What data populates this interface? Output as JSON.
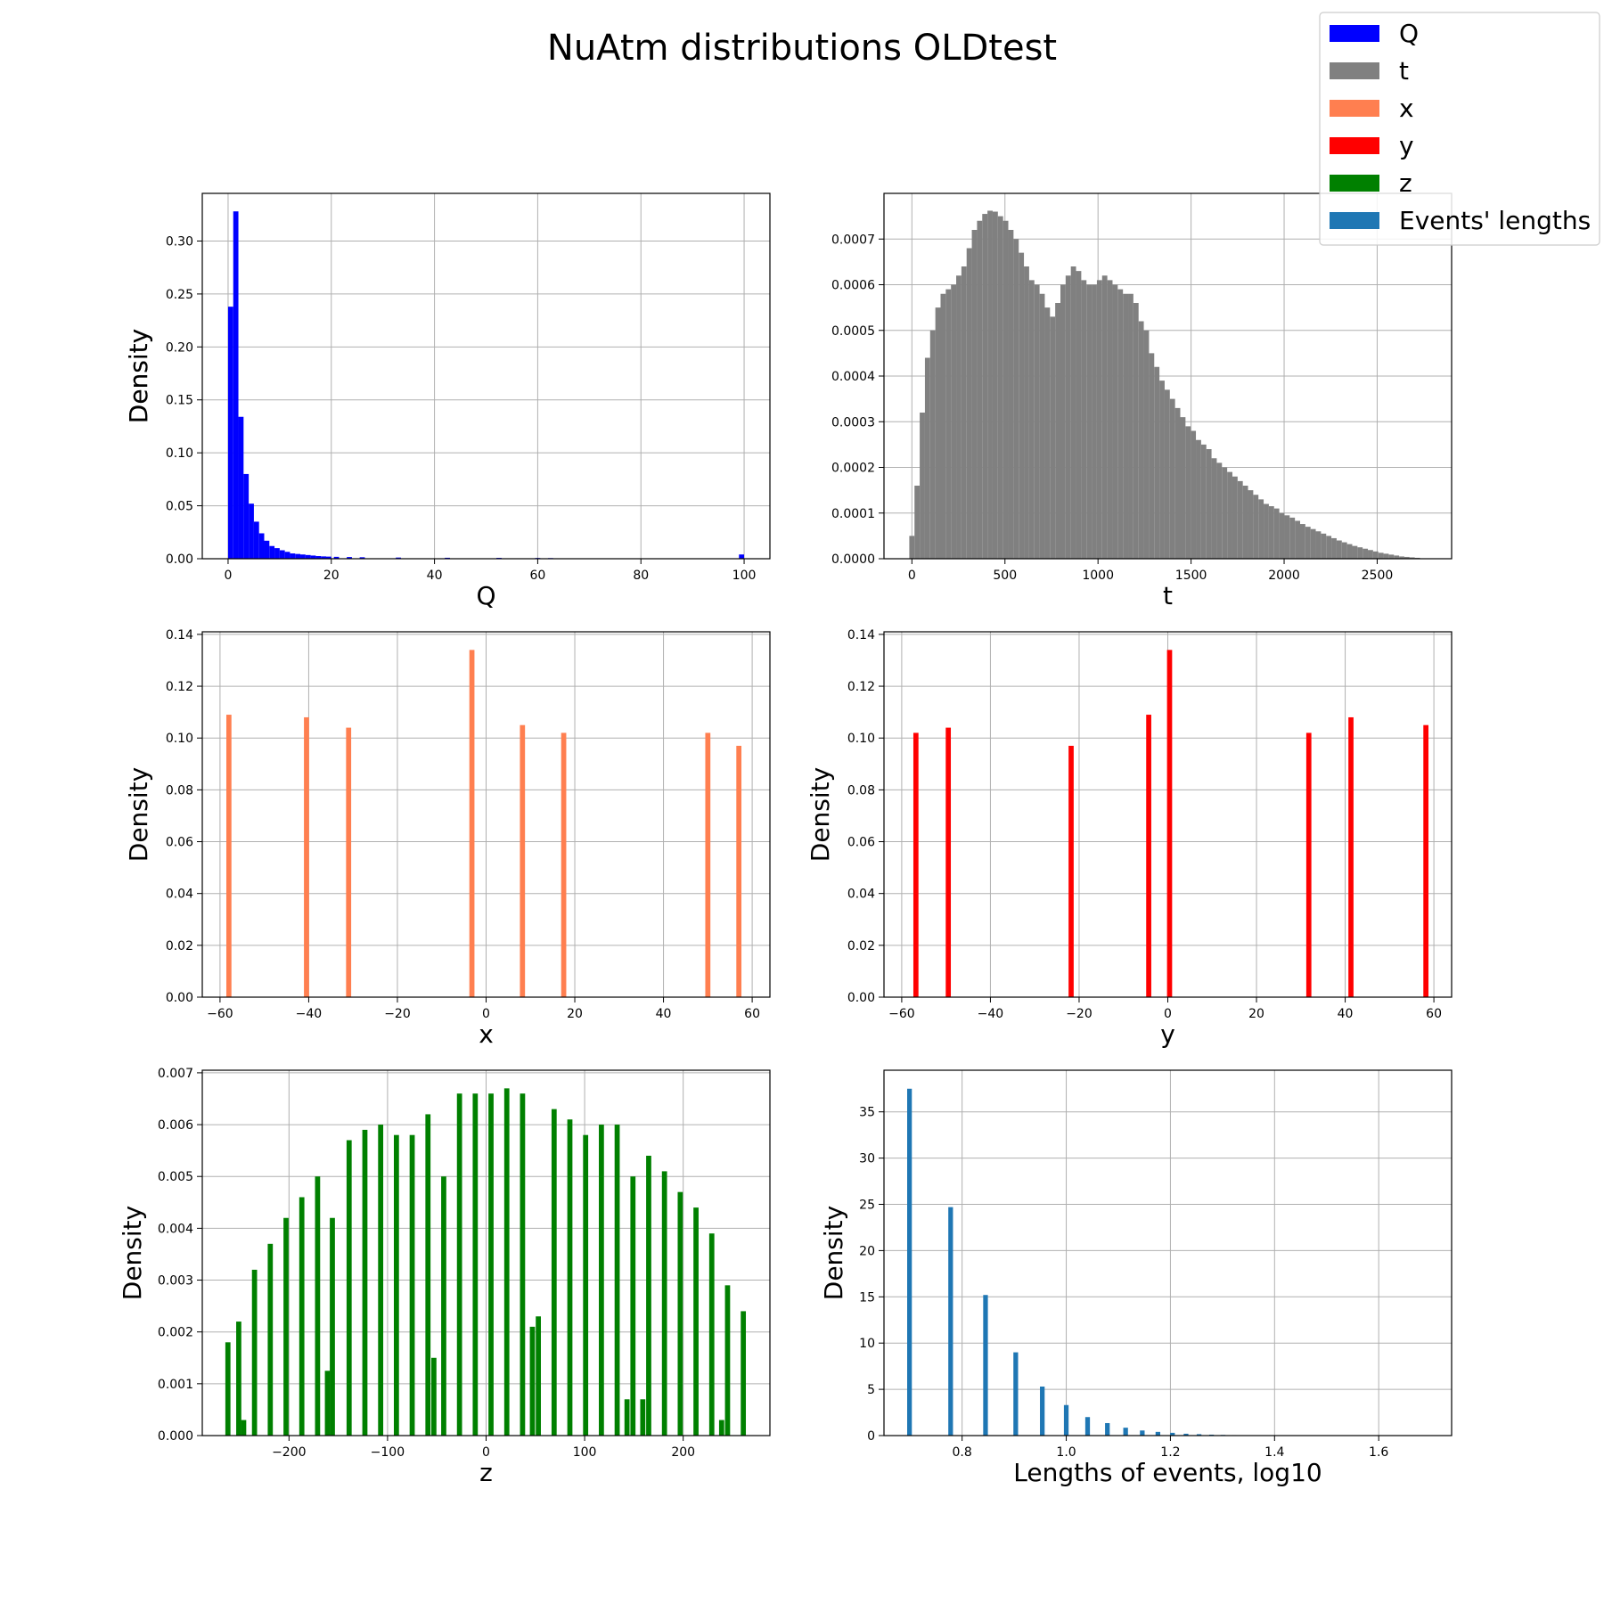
{
  "figure": {
    "title": "NuAtm distributions OLDtest",
    "legend": {
      "placement": "top-right",
      "entries": [
        {
          "label": "Q",
          "color": "#0000ff"
        },
        {
          "label": "t",
          "color": "#808080"
        },
        {
          "label": "x",
          "color": "#ff7f50"
        },
        {
          "label": "y",
          "color": "#ff0000"
        },
        {
          "label": "z",
          "color": "#008000"
        },
        {
          "label": "Events' lengths",
          "color": "#1f77b4"
        }
      ]
    }
  },
  "chart_data": [
    {
      "type": "bar",
      "series_name": "Q",
      "color": "#0000ff",
      "xlabel": "Q",
      "ylabel": "Density",
      "grid": true,
      "xlim": [
        -5,
        105
      ],
      "ylim": [
        0,
        0.345
      ],
      "xticks": [
        0,
        20,
        40,
        60,
        80,
        100
      ],
      "xtick_labels": [
        "0",
        "20",
        "40",
        "60",
        "80",
        "100"
      ],
      "yticks": [
        0,
        0.05,
        0.1,
        0.15,
        0.2,
        0.25,
        0.3
      ],
      "ytick_labels": [
        "0.00",
        "0.05",
        "0.10",
        "0.15",
        "0.20",
        "0.25",
        "0.30"
      ],
      "bin_width": 1,
      "x": [
        0.5,
        1.5,
        2.5,
        3.5,
        4.5,
        5.5,
        6.5,
        7.5,
        8.5,
        9.5,
        10.5,
        11.5,
        12.5,
        13.5,
        14.5,
        15.5,
        16.5,
        17.5,
        18.5,
        19.5,
        21.0,
        23.5,
        26.0,
        33.0,
        42.5,
        52.5,
        60.0,
        62.5,
        99.5
      ],
      "values": [
        0.238,
        0.328,
        0.134,
        0.08,
        0.052,
        0.035,
        0.024,
        0.017,
        0.012,
        0.01,
        0.008,
        0.0065,
        0.005,
        0.0045,
        0.004,
        0.0035,
        0.003,
        0.0025,
        0.0022,
        0.002,
        0.0018,
        0.0016,
        0.0014,
        0.0011,
        0.0009,
        0.0008,
        0.0007,
        0.0006,
        0.004
      ]
    },
    {
      "type": "bar",
      "series_name": "t",
      "color": "#808080",
      "xlabel": "t",
      "ylabel": "Density",
      "grid": true,
      "xlim": [
        -150,
        2900
      ],
      "ylim": [
        0,
        0.0008
      ],
      "xticks": [
        0,
        500,
        1000,
        1500,
        2000,
        2500
      ],
      "xtick_labels": [
        "0",
        "500",
        "1000",
        "1500",
        "2000",
        "2500"
      ],
      "yticks": [
        0,
        0.0001,
        0.0002,
        0.0003,
        0.0004,
        0.0005,
        0.0006,
        0.0007
      ],
      "ytick_labels": [
        "0.0000",
        "0.0001",
        "0.0002",
        "0.0003",
        "0.0004",
        "0.0005",
        "0.0006",
        "0.0007"
      ],
      "bin_width": 28,
      "x": [
        0,
        28,
        56,
        84,
        112,
        140,
        168,
        196,
        224,
        252,
        280,
        308,
        336,
        364,
        392,
        420,
        448,
        476,
        504,
        532,
        560,
        588,
        616,
        644,
        672,
        700,
        728,
        756,
        784,
        812,
        840,
        868,
        896,
        924,
        952,
        980,
        1008,
        1036,
        1064,
        1092,
        1120,
        1148,
        1176,
        1204,
        1232,
        1260,
        1288,
        1316,
        1344,
        1372,
        1400,
        1428,
        1456,
        1484,
        1512,
        1540,
        1568,
        1596,
        1624,
        1652,
        1680,
        1708,
        1736,
        1764,
        1792,
        1820,
        1848,
        1876,
        1904,
        1932,
        1960,
        1988,
        2016,
        2044,
        2072,
        2100,
        2128,
        2156,
        2184,
        2212,
        2240,
        2268,
        2296,
        2324,
        2352,
        2380,
        2408,
        2436,
        2464,
        2492,
        2520,
        2548,
        2576,
        2604,
        2632,
        2660,
        2688,
        2716
      ],
      "values": [
        5e-05,
        0.00016,
        0.00032,
        0.00044,
        0.0005,
        0.00055,
        0.00058,
        0.00059,
        0.0006,
        0.00062,
        0.00064,
        0.00068,
        0.00072,
        0.00074,
        0.000755,
        0.000762,
        0.00076,
        0.00075,
        0.00074,
        0.00072,
        0.0007,
        0.00067,
        0.00064,
        0.00061,
        0.0006,
        0.00058,
        0.00055,
        0.00053,
        0.00056,
        0.0006,
        0.00062,
        0.00064,
        0.00063,
        0.00061,
        0.0006,
        0.0006,
        0.00061,
        0.00062,
        0.00061,
        0.0006,
        0.00059,
        0.00058,
        0.00058,
        0.00056,
        0.00052,
        0.0005,
        0.00045,
        0.00042,
        0.00039,
        0.00037,
        0.00035,
        0.00033,
        0.00031,
        0.00029,
        0.00028,
        0.00026,
        0.00025,
        0.00024,
        0.00022,
        0.00021,
        0.0002,
        0.00019,
        0.00018,
        0.00017,
        0.00016,
        0.00015,
        0.00014,
        0.00013,
        0.00012,
        0.000115,
        0.00011,
        0.0001,
        9.5e-05,
        9e-05,
        8.3e-05,
        7.6e-05,
        7e-05,
        6.5e-05,
        6e-05,
        5.5e-05,
        5e-05,
        4.5e-05,
        4e-05,
        3.6e-05,
        3.2e-05,
        2.8e-05,
        2.5e-05,
        2.2e-05,
        1.9e-05,
        1.6e-05,
        1.3e-05,
        1.1e-05,
        9e-06,
        7e-06,
        5e-06,
        4e-06,
        3e-06,
        2e-06
      ]
    },
    {
      "type": "bar",
      "series_name": "x",
      "color": "#ff7f50",
      "xlabel": "x",
      "ylabel": "Density",
      "grid": true,
      "xlim": [
        -64,
        64
      ],
      "ylim": [
        0,
        0.141
      ],
      "xticks": [
        -60,
        -40,
        -20,
        0,
        20,
        40,
        60
      ],
      "xtick_labels": [
        "−60",
        "−40",
        "−20",
        "0",
        "20",
        "40",
        "60"
      ],
      "yticks": [
        0,
        0.02,
        0.04,
        0.06,
        0.08,
        0.1,
        0.12,
        0.14
      ],
      "ytick_labels": [
        "0.00",
        "0.02",
        "0.04",
        "0.06",
        "0.08",
        "0.10",
        "0.12",
        "0.14"
      ],
      "bin_width": 1.15,
      "x": [
        -58,
        -40.5,
        -31,
        -3.2,
        8.2,
        17.5,
        50,
        57
      ],
      "values": [
        0.109,
        0.108,
        0.104,
        0.134,
        0.105,
        0.102,
        0.102,
        0.097
      ]
    },
    {
      "type": "bar",
      "series_name": "y",
      "color": "#ff0000",
      "xlabel": "y",
      "ylabel": "Density",
      "grid": true,
      "xlim": [
        -64,
        64
      ],
      "ylim": [
        0,
        0.141
      ],
      "xticks": [
        -60,
        -40,
        -20,
        0,
        20,
        40,
        60
      ],
      "xtick_labels": [
        "−60",
        "−40",
        "−20",
        "0",
        "20",
        "40",
        "60"
      ],
      "yticks": [
        0,
        0.02,
        0.04,
        0.06,
        0.08,
        0.1,
        0.12,
        0.14
      ],
      "ytick_labels": [
        "0.00",
        "0.02",
        "0.04",
        "0.06",
        "0.08",
        "0.10",
        "0.12",
        "0.14"
      ],
      "bin_width": 1.15,
      "x": [
        -56.8,
        -49.5,
        -21.8,
        -4.3,
        0.4,
        31.8,
        41.3,
        58.2
      ],
      "values": [
        0.102,
        0.104,
        0.097,
        0.109,
        0.134,
        0.102,
        0.108,
        0.105
      ]
    },
    {
      "type": "bar",
      "series_name": "z",
      "color": "#008000",
      "xlabel": "z",
      "ylabel": "Density",
      "grid": true,
      "xlim": [
        -288,
        288
      ],
      "ylim": [
        0,
        0.00705
      ],
      "xticks": [
        -200,
        -100,
        0,
        100,
        200
      ],
      "xtick_labels": [
        "−200",
        "−100",
        "0",
        "100",
        "200"
      ],
      "yticks": [
        0,
        0.001,
        0.002,
        0.003,
        0.004,
        0.005,
        0.006,
        0.007
      ],
      "ytick_labels": [
        "0.000",
        "0.001",
        "0.002",
        "0.003",
        "0.004",
        "0.005",
        "0.006",
        "0.007"
      ],
      "bin_width": 5.2,
      "x": [
        -262,
        -251,
        -246,
        -235,
        -219,
        -203,
        -187,
        -171,
        -161,
        -156,
        -139,
        -123,
        -107,
        -91,
        -75,
        -59,
        -53,
        -43,
        -27,
        -11,
        5,
        21,
        37,
        47,
        53,
        69,
        85,
        101,
        117,
        133,
        143,
        149,
        159,
        165,
        181,
        197,
        213,
        229,
        239,
        245,
        261
      ],
      "values": [
        0.0018,
        0.0022,
        0.0003,
        0.0032,
        0.0037,
        0.0042,
        0.0046,
        0.005,
        0.00125,
        0.0042,
        0.0057,
        0.0059,
        0.006,
        0.0058,
        0.0058,
        0.0062,
        0.0015,
        0.005,
        0.0066,
        0.0066,
        0.0066,
        0.0067,
        0.0066,
        0.0021,
        0.0023,
        0.0063,
        0.0061,
        0.0058,
        0.006,
        0.006,
        0.0007,
        0.005,
        0.0007,
        0.0054,
        0.0051,
        0.0047,
        0.0044,
        0.0039,
        0.0003,
        0.0029,
        0.0024
      ]
    },
    {
      "type": "bar",
      "series_name": "Events' lengths",
      "color": "#1f77b4",
      "xlabel": "Lengths of events, log10",
      "ylabel": "Density",
      "grid": true,
      "xlim": [
        0.65,
        1.74
      ],
      "ylim": [
        0,
        39.5
      ],
      "xticks": [
        0.8,
        1.0,
        1.2,
        1.4,
        1.6
      ],
      "xtick_labels": [
        "0.8",
        "1.0",
        "1.2",
        "1.4",
        "1.6"
      ],
      "yticks": [
        0,
        5,
        10,
        15,
        20,
        25,
        30,
        35
      ],
      "ytick_labels": [
        "0",
        "5",
        "10",
        "15",
        "20",
        "25",
        "30",
        "35"
      ],
      "bin_width": 0.009,
      "x": [
        0.699,
        0.778,
        0.845,
        0.903,
        0.954,
        1.0,
        1.041,
        1.079,
        1.114,
        1.146,
        1.176,
        1.204,
        1.23,
        1.255,
        1.279,
        1.301,
        1.322
      ],
      "values": [
        37.5,
        24.7,
        15.2,
        9.0,
        5.3,
        3.3,
        2.0,
        1.35,
        0.85,
        0.55,
        0.4,
        0.3,
        0.2,
        0.15,
        0.1,
        0.07,
        0.05
      ]
    }
  ]
}
